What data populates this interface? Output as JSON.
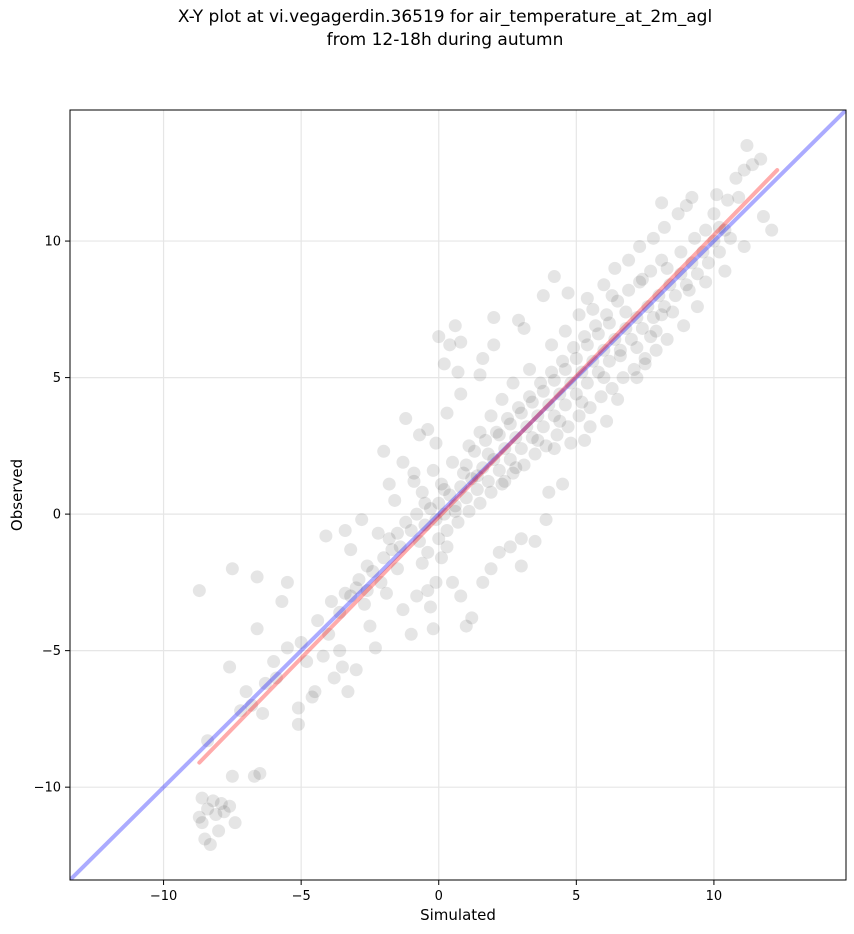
{
  "chart_data": {
    "type": "scatter",
    "title": "X-Y plot at vi.vegagerdin.36519 for air_temperature_at_2m_agl",
    "subtitle": "from 12-18h during autumn",
    "xlabel": "Simulated",
    "ylabel": "Observed",
    "xlim": [
      -13.4,
      14.8
    ],
    "ylim": [
      -13.4,
      14.8
    ],
    "xticks": [
      -10,
      -5,
      0,
      5,
      10
    ],
    "yticks": [
      -10,
      -5,
      0,
      5,
      10
    ],
    "xtick_labels": [
      "−10",
      "−5",
      "0",
      "5",
      "10"
    ],
    "ytick_labels": [
      "−10",
      "−5",
      "0",
      "5",
      "10"
    ],
    "grid": true,
    "point_color": "#000000",
    "point_alpha": 0.1,
    "identity_line": {
      "from": [
        -13.4,
        -13.4
      ],
      "to": [
        14.8,
        14.8
      ],
      "color": "#0000ff",
      "alpha": 0.33
    },
    "fit_line": {
      "from": [
        -8.7,
        -9.1
      ],
      "to": [
        12.3,
        12.6
      ],
      "color": "#ff0000",
      "alpha": 0.33
    },
    "points": [
      [
        -8.6,
        -11.3
      ],
      [
        -8.4,
        -10.8
      ],
      [
        -8.5,
        -11.9
      ],
      [
        -8.2,
        -10.5
      ],
      [
        -8.7,
        -11.1
      ],
      [
        -8.0,
        -11.6
      ],
      [
        -7.9,
        -10.6
      ],
      [
        -8.3,
        -12.1
      ],
      [
        -7.8,
        -10.9
      ],
      [
        -8.6,
        -10.4
      ],
      [
        -7.6,
        -10.7
      ],
      [
        -8.1,
        -11.0
      ],
      [
        -7.4,
        -11.3
      ],
      [
        -8.4,
        -8.3
      ],
      [
        -7.2,
        -7.2
      ],
      [
        -7.0,
        -6.5
      ],
      [
        -6.8,
        -7.0
      ],
      [
        -6.4,
        -7.3
      ],
      [
        -6.7,
        -9.6
      ],
      [
        -6.5,
        -9.5
      ],
      [
        -7.5,
        -9.6
      ],
      [
        -7.6,
        -5.6
      ],
      [
        -6.6,
        -4.2
      ],
      [
        -6.6,
        -2.3
      ],
      [
        -7.5,
        -2.0
      ],
      [
        -8.7,
        -2.8
      ],
      [
        -5.5,
        -2.5
      ],
      [
        -5.7,
        -3.2
      ],
      [
        -6.3,
        -6.2
      ],
      [
        -5.9,
        -6.0
      ],
      [
        -5.1,
        -7.7
      ],
      [
        -5.1,
        -7.1
      ],
      [
        -4.6,
        -6.7
      ],
      [
        -4.5,
        -6.5
      ],
      [
        -4.8,
        -5.4
      ],
      [
        -4.2,
        -5.2
      ],
      [
        -3.6,
        -5.0
      ],
      [
        -3.5,
        -5.6
      ],
      [
        -3.3,
        -6.5
      ],
      [
        -3.8,
        -6.0
      ],
      [
        -3.0,
        -5.7
      ],
      [
        -3.9,
        -3.2
      ],
      [
        -3.4,
        -2.9
      ],
      [
        -3.0,
        -2.7
      ],
      [
        -2.7,
        -3.3
      ],
      [
        -2.5,
        -4.1
      ],
      [
        -2.3,
        -4.9
      ],
      [
        -2.6,
        -2.8
      ],
      [
        -2.1,
        -2.5
      ],
      [
        -1.9,
        -2.9
      ],
      [
        -2.2,
        -0.7
      ],
      [
        -2.8,
        -0.2
      ],
      [
        -3.4,
        -0.6
      ],
      [
        -4.1,
        -0.8
      ],
      [
        -3.2,
        -1.3
      ],
      [
        -1.5,
        -2.0
      ],
      [
        -1.4,
        -1.2
      ],
      [
        -1.8,
        -0.9
      ],
      [
        -1.6,
        0.5
      ],
      [
        -2.0,
        2.3
      ],
      [
        -1.2,
        3.5
      ],
      [
        -0.7,
        2.9
      ],
      [
        -0.9,
        1.5
      ],
      [
        -0.5,
        0.4
      ],
      [
        -0.6,
        -1.8
      ],
      [
        -0.4,
        -2.8
      ],
      [
        -0.8,
        -3.0
      ],
      [
        -0.3,
        -3.4
      ],
      [
        -0.2,
        -4.2
      ],
      [
        -1.0,
        -4.4
      ],
      [
        -1.3,
        -3.5
      ],
      [
        -0.1,
        -2.5
      ],
      [
        0.1,
        -1.6
      ],
      [
        0.3,
        -1.2
      ],
      [
        0.5,
        -2.5
      ],
      [
        0.8,
        -3.0
      ],
      [
        1.2,
        -3.8
      ],
      [
        1.0,
        -4.1
      ],
      [
        1.6,
        -2.5
      ],
      [
        1.9,
        -2.0
      ],
      [
        2.2,
        -1.4
      ],
      [
        2.6,
        -1.2
      ],
      [
        3.0,
        -0.9
      ],
      [
        3.0,
        -1.9
      ],
      [
        3.5,
        -1.0
      ],
      [
        3.9,
        -0.2
      ],
      [
        4.0,
        0.8
      ],
      [
        4.5,
        1.1
      ],
      [
        4.2,
        2.4
      ],
      [
        4.8,
        2.6
      ],
      [
        5.3,
        2.7
      ],
      [
        5.5,
        3.2
      ],
      [
        6.1,
        3.4
      ],
      [
        6.5,
        4.2
      ],
      [
        7.2,
        5.0
      ],
      [
        7.5,
        5.5
      ],
      [
        0.0,
        6.5
      ],
      [
        0.4,
        6.2
      ],
      [
        0.6,
        6.9
      ],
      [
        0.8,
        6.3
      ],
      [
        0.2,
        5.5
      ],
      [
        0.7,
        5.2
      ],
      [
        1.6,
        5.7
      ],
      [
        1.5,
        5.1
      ],
      [
        2.0,
        6.2
      ],
      [
        2.0,
        7.2
      ],
      [
        2.9,
        7.1
      ],
      [
        3.1,
        6.8
      ],
      [
        3.8,
        8.0
      ],
      [
        4.2,
        8.7
      ],
      [
        4.7,
        8.1
      ],
      [
        5.4,
        7.9
      ],
      [
        6.0,
        8.4
      ],
      [
        6.4,
        9.0
      ],
      [
        6.9,
        9.3
      ],
      [
        7.3,
        9.8
      ],
      [
        7.8,
        10.1
      ],
      [
        8.2,
        10.5
      ],
      [
        8.7,
        11.0
      ],
      [
        9.0,
        11.3
      ],
      [
        9.2,
        11.6
      ],
      [
        8.1,
        11.4
      ],
      [
        10.0,
        11.0
      ],
      [
        10.1,
        11.7
      ],
      [
        10.5,
        11.5
      ],
      [
        10.9,
        11.6
      ],
      [
        11.1,
        12.6
      ],
      [
        11.4,
        12.8
      ],
      [
        11.7,
        13.0
      ],
      [
        11.2,
        13.5
      ],
      [
        10.8,
        12.3
      ],
      [
        10.2,
        10.5
      ],
      [
        10.6,
        10.1
      ],
      [
        11.1,
        9.8
      ],
      [
        12.1,
        10.4
      ],
      [
        11.8,
        10.9
      ],
      [
        10.4,
        8.9
      ],
      [
        9.7,
        8.5
      ],
      [
        9.4,
        7.6
      ],
      [
        8.9,
        6.9
      ],
      [
        8.1,
        7.3
      ],
      [
        7.7,
        6.5
      ],
      [
        7.2,
        6.1
      ],
      [
        6.6,
        5.8
      ],
      [
        -6.0,
        -5.4
      ],
      [
        -5.5,
        -4.9
      ],
      [
        -5.0,
        -4.7
      ],
      [
        -4.4,
        -3.9
      ],
      [
        -4.0,
        -4.4
      ],
      [
        -3.6,
        -3.6
      ],
      [
        -3.2,
        -3.0
      ],
      [
        -2.9,
        -2.4
      ],
      [
        -2.6,
        -1.9
      ],
      [
        -2.4,
        -2.1
      ],
      [
        -2.0,
        -1.6
      ],
      [
        -1.7,
        -1.3
      ],
      [
        -1.5,
        -0.7
      ],
      [
        -1.2,
        -0.3
      ],
      [
        -1.0,
        -0.6
      ],
      [
        -0.8,
        0.0
      ],
      [
        -0.5,
        -0.4
      ],
      [
        -0.3,
        0.2
      ],
      [
        -0.1,
        -0.2
      ],
      [
        0.0,
        0.4
      ],
      [
        0.2,
        0.0
      ],
      [
        0.4,
        0.7
      ],
      [
        0.6,
        0.3
      ],
      [
        0.8,
        1.0
      ],
      [
        1.0,
        0.6
      ],
      [
        1.2,
        1.3
      ],
      [
        1.4,
        0.9
      ],
      [
        1.6,
        1.7
      ],
      [
        1.8,
        1.2
      ],
      [
        2.0,
        2.0
      ],
      [
        2.2,
        1.6
      ],
      [
        2.4,
        2.4
      ],
      [
        2.6,
        2.0
      ],
      [
        2.8,
        2.8
      ],
      [
        3.0,
        2.4
      ],
      [
        3.2,
        3.2
      ],
      [
        3.4,
        2.8
      ],
      [
        3.6,
        3.6
      ],
      [
        3.8,
        3.2
      ],
      [
        4.0,
        4.0
      ],
      [
        4.2,
        3.6
      ],
      [
        4.4,
        4.4
      ],
      [
        4.6,
        4.0
      ],
      [
        4.8,
        4.8
      ],
      [
        5.0,
        4.4
      ],
      [
        5.2,
        5.2
      ],
      [
        5.4,
        4.8
      ],
      [
        5.6,
        5.6
      ],
      [
        5.8,
        5.2
      ],
      [
        6.0,
        6.0
      ],
      [
        6.2,
        5.6
      ],
      [
        6.4,
        6.4
      ],
      [
        6.6,
        6.0
      ],
      [
        6.8,
        6.8
      ],
      [
        7.0,
        6.4
      ],
      [
        7.2,
        7.2
      ],
      [
        7.4,
        6.8
      ],
      [
        7.6,
        7.6
      ],
      [
        7.8,
        7.2
      ],
      [
        8.0,
        8.0
      ],
      [
        8.2,
        7.6
      ],
      [
        8.4,
        8.4
      ],
      [
        8.6,
        8.0
      ],
      [
        8.8,
        8.8
      ],
      [
        9.0,
        8.4
      ],
      [
        9.2,
        9.2
      ],
      [
        9.4,
        8.8
      ],
      [
        9.6,
        9.6
      ],
      [
        9.8,
        9.2
      ],
      [
        10.0,
        10.0
      ],
      [
        10.2,
        9.6
      ],
      [
        10.4,
        10.4
      ],
      [
        -0.9,
        1.2
      ],
      [
        -0.6,
        0.8
      ],
      [
        -0.2,
        1.6
      ],
      [
        0.1,
        1.1
      ],
      [
        0.5,
        1.9
      ],
      [
        0.9,
        1.5
      ],
      [
        1.3,
        2.3
      ],
      [
        1.7,
        2.7
      ],
      [
        2.1,
        3.0
      ],
      [
        2.5,
        3.5
      ],
      [
        2.9,
        3.9
      ],
      [
        3.3,
        4.3
      ],
      [
        3.7,
        4.8
      ],
      [
        4.1,
        5.2
      ],
      [
        4.5,
        5.6
      ],
      [
        4.9,
        6.1
      ],
      [
        5.3,
        6.5
      ],
      [
        5.7,
        6.9
      ],
      [
        6.1,
        7.3
      ],
      [
        6.5,
        7.8
      ],
      [
        6.9,
        8.2
      ],
      [
        7.3,
        8.5
      ],
      [
        7.7,
        8.9
      ],
      [
        8.1,
        9.3
      ],
      [
        -0.7,
        -1.0
      ],
      [
        -0.4,
        -1.4
      ],
      [
        0.0,
        -0.9
      ],
      [
        0.3,
        -0.6
      ],
      [
        0.7,
        -0.3
      ],
      [
        1.1,
        0.1
      ],
      [
        1.5,
        0.4
      ],
      [
        1.9,
        0.8
      ],
      [
        2.3,
        1.1
      ],
      [
        2.7,
        1.5
      ],
      [
        3.1,
        1.8
      ],
      [
        3.5,
        2.2
      ],
      [
        3.9,
        2.5
      ],
      [
        4.3,
        2.9
      ],
      [
        4.7,
        3.2
      ],
      [
        5.1,
        3.6
      ],
      [
        5.5,
        3.9
      ],
      [
        5.9,
        4.3
      ],
      [
        6.3,
        4.6
      ],
      [
        6.7,
        5.0
      ],
      [
        7.1,
        5.3
      ],
      [
        7.5,
        5.7
      ],
      [
        7.9,
        6.0
      ],
      [
        8.3,
        6.4
      ],
      [
        0.2,
        0.9
      ],
      [
        0.6,
        0.1
      ],
      [
        1.0,
        1.8
      ],
      [
        1.4,
        1.4
      ],
      [
        1.8,
        2.2
      ],
      [
        2.2,
        2.9
      ],
      [
        2.6,
        3.3
      ],
      [
        3.0,
        3.7
      ],
      [
        3.4,
        4.1
      ],
      [
        3.8,
        4.5
      ],
      [
        4.2,
        4.9
      ],
      [
        4.6,
        5.3
      ],
      [
        5.0,
        5.7
      ],
      [
        5.4,
        6.2
      ],
      [
        5.8,
        6.6
      ],
      [
        6.2,
        7.0
      ],
      [
        1.1,
        2.5
      ],
      [
        1.5,
        3.0
      ],
      [
        2.4,
        1.2
      ],
      [
        2.8,
        1.7
      ],
      [
        3.6,
        2.7
      ],
      [
        4.4,
        3.4
      ],
      [
        5.2,
        4.1
      ],
      [
        6.0,
        5.0
      ],
      [
        4.1,
        6.2
      ],
      [
        4.6,
        6.7
      ],
      [
        5.1,
        7.3
      ],
      [
        5.6,
        7.5
      ],
      [
        6.3,
        8.0
      ],
      [
        6.8,
        7.4
      ],
      [
        7.4,
        8.6
      ],
      [
        8.3,
        9.0
      ],
      [
        8.8,
        9.6
      ],
      [
        9.3,
        10.1
      ],
      [
        9.7,
        10.4
      ],
      [
        9.1,
        8.2
      ],
      [
        8.5,
        7.4
      ],
      [
        7.9,
        6.7
      ],
      [
        3.3,
        5.3
      ],
      [
        2.7,
        4.8
      ],
      [
        2.3,
        4.2
      ],
      [
        1.9,
        3.6
      ],
      [
        -0.1,
        2.6
      ],
      [
        -0.4,
        3.1
      ],
      [
        0.3,
        3.7
      ],
      [
        0.8,
        4.4
      ],
      [
        -1.3,
        1.9
      ],
      [
        -1.8,
        1.1
      ]
    ]
  }
}
